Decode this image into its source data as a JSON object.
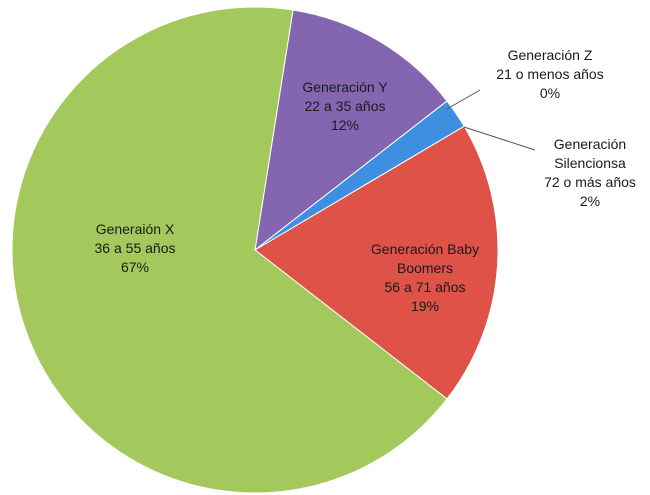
{
  "chart_data": {
    "type": "pie",
    "categories": [
      "Generación Y",
      "Generación Z",
      "Generación Silencionsa",
      "Generación Baby Boomers",
      "Generaión X"
    ],
    "age_ranges": [
      "22 a 35 años",
      "21 o menos años",
      "72 o más años",
      "56 a 71 años",
      "36 a 55 años"
    ],
    "values": [
      12,
      0,
      2,
      19,
      67
    ],
    "value_labels": [
      "12%",
      "0%",
      "2%",
      "19%",
      "67%"
    ],
    "colors": [
      "#8466b0",
      "#4bacc6",
      "#3f8fe0",
      "#de5248",
      "#a3c95c"
    ]
  }
}
